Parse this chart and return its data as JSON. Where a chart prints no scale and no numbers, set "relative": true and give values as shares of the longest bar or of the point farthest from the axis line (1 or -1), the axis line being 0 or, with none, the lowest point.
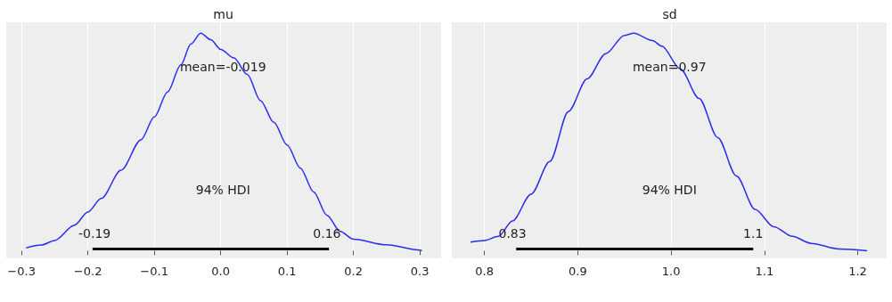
{
  "chart_data": [
    {
      "type": "line",
      "title": "mu",
      "relative": true,
      "grid": "x",
      "marker": "none",
      "line_style": "solid",
      "xlim": [
        -0.323,
        0.332
      ],
      "xticks": [
        {
          "value": -0.3,
          "label": "−0.3"
        },
        {
          "value": -0.2,
          "label": "−0.2"
        },
        {
          "value": -0.1,
          "label": "−0.1"
        },
        {
          "value": 0,
          "label": "0.0"
        },
        0.1,
        0.2,
        0.3
      ],
      "series": [
        {
          "color": "#2a2eec",
          "x": [
            -0.293,
            -0.27,
            -0.25,
            -0.22,
            -0.2,
            -0.18,
            -0.15,
            -0.12,
            -0.1,
            -0.08,
            -0.06,
            -0.045,
            -0.03,
            -0.015,
            0.0,
            0.02,
            0.04,
            0.06,
            0.08,
            0.1,
            0.12,
            0.14,
            0.16,
            0.18,
            0.2,
            0.25,
            0.3,
            0.303
          ],
          "values": [
            0.013,
            0.026,
            0.047,
            0.118,
            0.178,
            0.24,
            0.37,
            0.51,
            0.615,
            0.73,
            0.854,
            0.95,
            1.0,
            0.97,
            0.925,
            0.886,
            0.81,
            0.69,
            0.59,
            0.486,
            0.38,
            0.27,
            0.163,
            0.089,
            0.053,
            0.027,
            0.003,
            0
          ]
        },
        {
          "color": "#000000",
          "x": [
            -0.193,
            0.163
          ],
          "values": [
            0.008,
            0.008
          ]
        }
      ],
      "annotations": [
        "mean=-0.019",
        "94% HDI",
        {
          "text": "-0.19",
          "x": -0.19,
          "y": 0.008
        },
        {
          "text": "0.16",
          "x": 0.16,
          "y": 0.008
        }
      ]
    },
    {
      "type": "line",
      "title": "sd",
      "relative": true,
      "grid": "x",
      "marker": "none",
      "line_style": "solid",
      "xlim": [
        0.765,
        1.231
      ],
      "xticks": [
        0.8,
        0.9,
        {
          "value": 1,
          "label": "1.0"
        },
        1.1,
        1.2
      ],
      "series": [
        {
          "color": "#2a2eec",
          "x": [
            0.785,
            0.8,
            0.815,
            0.83,
            0.85,
            0.87,
            0.89,
            0.91,
            0.93,
            0.95,
            0.96,
            0.98,
            0.99,
            1.01,
            1.03,
            1.05,
            1.07,
            1.09,
            1.11,
            1.13,
            1.15,
            1.18,
            1.21
          ],
          "values": [
            0.04,
            0.047,
            0.066,
            0.137,
            0.26,
            0.41,
            0.64,
            0.79,
            0.906,
            0.99,
            1.0,
            0.966,
            0.94,
            0.835,
            0.7,
            0.52,
            0.344,
            0.19,
            0.11,
            0.066,
            0.034,
            0.008,
            0
          ]
        },
        {
          "color": "#000000",
          "x": [
            0.834,
            1.088
          ],
          "values": [
            0.008,
            0.008
          ]
        }
      ],
      "annotations": [
        "mean=0.97",
        "94% HDI",
        {
          "text": "0.83",
          "x": 0.83,
          "y": 0.008
        },
        {
          "text": "1.1",
          "x": 1.088,
          "y": 0.008
        }
      ]
    }
  ]
}
